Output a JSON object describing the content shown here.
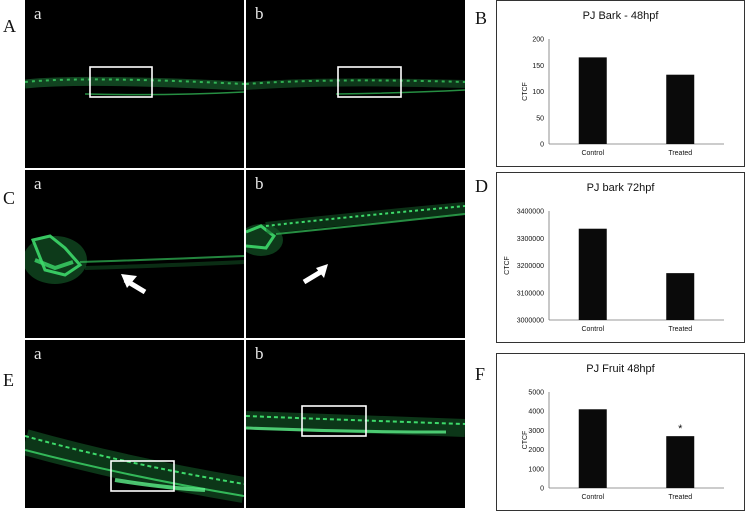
{
  "panel_letters": {
    "A": "A",
    "B": "B",
    "C": "C",
    "D": "D",
    "E": "E",
    "F": "F"
  },
  "sub_labels": {
    "a": "a",
    "b": "b"
  },
  "chart_data": [
    {
      "type": "bar",
      "title": "PJ  Bark - 48hpf",
      "ylabel": "CTCF",
      "categories": [
        "Control",
        "Treated"
      ],
      "values": [
        165,
        132
      ],
      "ylim": [
        0,
        200
      ],
      "yticks": [
        0,
        50,
        100,
        150,
        200
      ],
      "annotations": []
    },
    {
      "type": "bar",
      "title": "PJ bark 72hpf",
      "ylabel": "CTCF",
      "categories": [
        "Control",
        "Treated"
      ],
      "values": [
        3335000,
        3172000
      ],
      "ylim": [
        3000000,
        3400000
      ],
      "yticks": [
        3000000,
        3100000,
        3200000,
        3300000,
        3400000
      ],
      "annotations": []
    },
    {
      "type": "bar",
      "title": "PJ Fruit 48hpf",
      "ylabel": "CTCF",
      "categories": [
        "Control",
        "Treated"
      ],
      "values": [
        4100,
        2700
      ],
      "ylim": [
        0,
        5000
      ],
      "yticks": [
        0,
        1000,
        2000,
        3000,
        4000,
        5000
      ],
      "annotations": [
        {
          "category": "Treated",
          "text": "*"
        }
      ]
    }
  ],
  "colors": {
    "bar": "#0a0a0a",
    "fluorescence": "#3dd96a",
    "background": "#000000"
  }
}
